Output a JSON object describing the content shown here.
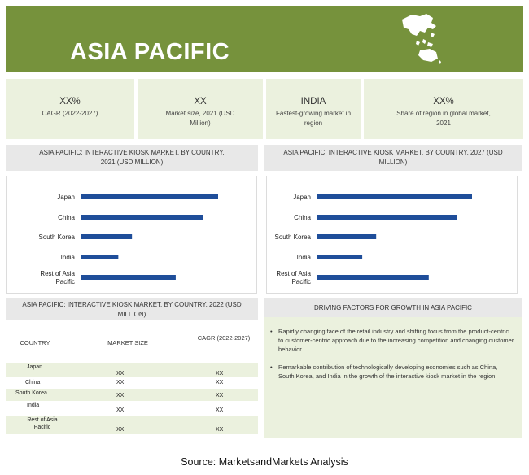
{
  "banner": {
    "title": "ASIA PACIFIC"
  },
  "kpis": [
    {
      "value": "XX%",
      "label": "CAGR (2022-2027)"
    },
    {
      "value": "XX",
      "label": "Market size, 2021 (USD Million)"
    },
    {
      "value": "INDIA",
      "label": "Fastest-growing market in region"
    },
    {
      "value": "XX%",
      "label": "Share of region in global market, 2021"
    }
  ],
  "chart_data": [
    {
      "type": "bar",
      "orientation": "horizontal",
      "title": "ASIA PACIFIC: INTERACTIVE KIOSK MARKET, BY COUNTRY, 2021 (USD MILLION)",
      "categories": [
        "Japan",
        "China",
        "South Korea",
        "India",
        "Rest of Asia Pacific"
      ],
      "values": [
        100,
        89,
        37,
        27,
        69
      ],
      "color": "#1f4e9a"
    },
    {
      "type": "bar",
      "orientation": "horizontal",
      "title": "ASIA PACIFIC: INTERACTIVE KIOSK  MARKET, BY COUNTRY, 2027 (USD MILLION)",
      "categories": [
        "Japan",
        "China",
        "South Korea",
        "India",
        "Rest of Asia Pacific"
      ],
      "values": [
        100,
        90,
        38,
        29,
        72
      ],
      "color": "#1f4e9a"
    }
  ],
  "table": {
    "title": "ASIA PACIFIC: INTERACTIVE KIOSK MARKET, BY COUNTRY, 2022 (USD MILLION)",
    "headers": [
      "COUNTRY",
      "MARKET SIZE",
      "CAGR (2022-2027)"
    ],
    "rows": [
      {
        "country": "Japan",
        "size": "XX",
        "cagr": "XX"
      },
      {
        "country": "China",
        "size": "XX",
        "cagr": "XX"
      },
      {
        "country": "South Korea",
        "size": "XX",
        "cagr": "XX"
      },
      {
        "country": "India",
        "size": "XX",
        "cagr": "XX"
      },
      {
        "country": "Rest of Asia Pacific",
        "size": "XX",
        "cagr": "XX"
      }
    ]
  },
  "drivers": {
    "title": "DRIVING FACTORS FOR GROWTH IN ASIA PACIFIC",
    "items": [
      "Rapidly changing face of the retail industry and shifting focus from the product-centric to customer-centric approach due to the increasing competition and changing customer behavior",
      "Remarkable contribution of technologically developing economies such as China, South Korea, and India in the growth of the interactive kiosk market in the region"
    ]
  },
  "source": "Source: MarketsandMarkets Analysis",
  "colors": {
    "banner": "#76923c",
    "panel": "#ebf1de",
    "bar": "#1f4e9a",
    "header": "#e8e8e8"
  }
}
